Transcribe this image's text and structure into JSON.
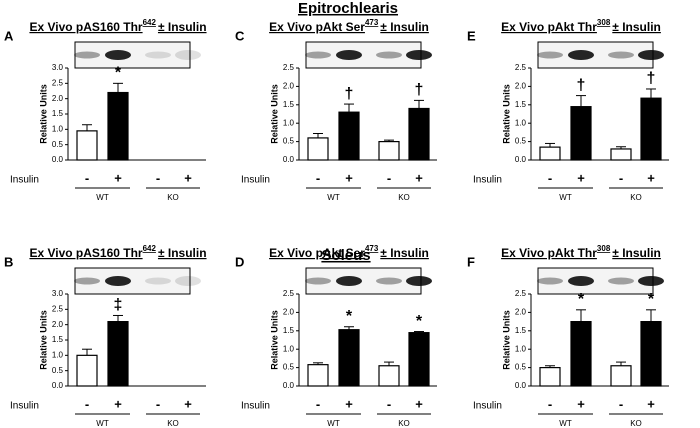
{
  "section_titles": [
    "Epitrochlearis",
    "Soleus"
  ],
  "chart_data": [
    {
      "type": "bar",
      "panel": "A",
      "title": "Ex Vivo pAS160 Thr",
      "title_superscript": "642",
      "title_suffix": "± Insulin",
      "ylabel": "Relative Units",
      "row_label": "Insulin",
      "categories": [
        "-",
        "+",
        "-",
        "+"
      ],
      "groups": [
        "WT",
        "KO"
      ],
      "values": [
        0.95,
        2.2,
        null,
        null
      ],
      "errors": [
        0.2,
        0.3,
        null,
        null
      ],
      "annotations": [
        null,
        "*",
        null,
        null
      ],
      "colors": [
        "#ffffff",
        "#000000",
        "#ffffff",
        "#000000"
      ],
      "ylim": [
        0,
        3
      ],
      "yticks": [
        {
          "value": 0,
          "label": "0.0"
        },
        0.5,
        {
          "value": 1,
          "label": "1.0"
        },
        1.5,
        {
          "value": 2,
          "label": "2.0"
        },
        2.5,
        {
          "value": 3,
          "label": "3.0"
        }
      ]
    },
    {
      "type": "bar",
      "panel": "B",
      "title": "Ex Vivo pAS160 Thr",
      "title_superscript": "642",
      "title_suffix": "± Insulin",
      "ylabel": "Relative Units",
      "row_label": "Insulin",
      "categories": [
        "-",
        "+",
        "-",
        "+"
      ],
      "groups": [
        "WT",
        "KO"
      ],
      "values": [
        1.0,
        2.1,
        null,
        null
      ],
      "errors": [
        0.2,
        0.2,
        null,
        null
      ],
      "annotations": [
        null,
        "‡",
        null,
        null
      ],
      "colors": [
        "#ffffff",
        "#000000",
        "#ffffff",
        "#000000"
      ],
      "ylim": [
        0,
        3
      ],
      "yticks": [
        {
          "value": 0,
          "label": "0.0"
        },
        0.5,
        {
          "value": 1,
          "label": "1.0"
        },
        1.5,
        {
          "value": 2,
          "label": "2.0"
        },
        2.5,
        {
          "value": 3,
          "label": "3.0"
        }
      ]
    },
    {
      "type": "bar",
      "panel": "C",
      "title": "Ex Vivo pAkt Ser",
      "title_superscript": "473",
      "title_suffix": "± Insulin",
      "ylabel": "Relative Units",
      "row_label": "Insulin",
      "categories": [
        "-",
        "+",
        "-",
        "+"
      ],
      "groups": [
        "WT",
        "KO"
      ],
      "values": [
        0.6,
        1.3,
        0.5,
        1.4
      ],
      "errors": [
        0.12,
        0.22,
        0.04,
        0.22
      ],
      "annotations": [
        null,
        "†",
        null,
        "†"
      ],
      "colors": [
        "#ffffff",
        "#000000",
        "#ffffff",
        "#000000"
      ],
      "ylim": [
        0,
        2.5
      ],
      "yticks": [
        {
          "value": 0,
          "label": "0.0"
        },
        0.5,
        {
          "value": 1,
          "label": "1.0"
        },
        1.5,
        {
          "value": 2,
          "label": "2.0"
        },
        2.5
      ]
    },
    {
      "type": "bar",
      "panel": "D",
      "title": "Ex Vivo pAkt Ser",
      "title_superscript": "473",
      "title_suffix": "± Insulin",
      "ylabel": "Relative Units",
      "row_label": "Insulin",
      "categories": [
        "-",
        "+",
        "-",
        "+"
      ],
      "groups": [
        "WT",
        "KO"
      ],
      "values": [
        0.58,
        1.53,
        0.55,
        1.45
      ],
      "errors": [
        0.05,
        0.08,
        0.1,
        0.03
      ],
      "annotations": [
        null,
        "*",
        null,
        "*"
      ],
      "colors": [
        "#ffffff",
        "#000000",
        "#ffffff",
        "#000000"
      ],
      "ylim": [
        0,
        2.5
      ],
      "yticks": [
        {
          "value": 0,
          "label": "0.0"
        },
        0.5,
        {
          "value": 1,
          "label": "1.0"
        },
        1.5,
        {
          "value": 2,
          "label": "2.0"
        },
        2.5
      ]
    },
    {
      "type": "bar",
      "panel": "E",
      "title": "Ex Vivo pAkt Thr",
      "title_superscript": "308",
      "title_suffix": "± Insulin",
      "ylabel": "Relative Units",
      "row_label": "Insulin",
      "categories": [
        "-",
        "+",
        "-",
        "+"
      ],
      "groups": [
        "WT",
        "KO"
      ],
      "values": [
        0.35,
        1.45,
        0.3,
        1.68
      ],
      "errors": [
        0.1,
        0.3,
        0.06,
        0.25
      ],
      "annotations": [
        null,
        "†",
        null,
        "†"
      ],
      "colors": [
        "#ffffff",
        "#000000",
        "#ffffff",
        "#000000"
      ],
      "ylim": [
        0,
        2.5
      ],
      "yticks": [
        {
          "value": 0,
          "label": "0.0"
        },
        0.5,
        {
          "value": 1,
          "label": "1.0"
        },
        1.5,
        {
          "value": 2,
          "label": "2.0"
        },
        2.5
      ]
    },
    {
      "type": "bar",
      "panel": "F",
      "title": "Ex Vivo pAkt Thr",
      "title_superscript": "308",
      "title_suffix": "± Insulin",
      "ylabel": "Relative Units",
      "row_label": "Insulin",
      "categories": [
        "-",
        "+",
        "-",
        "+"
      ],
      "groups": [
        "WT",
        "KO"
      ],
      "values": [
        0.5,
        1.75,
        0.55,
        1.75
      ],
      "errors": [
        0.05,
        0.32,
        0.1,
        0.32
      ],
      "annotations": [
        null,
        "*",
        null,
        "*"
      ],
      "colors": [
        "#ffffff",
        "#000000",
        "#ffffff",
        "#000000"
      ],
      "ylim": [
        0,
        2.5
      ],
      "yticks": [
        {
          "value": 0,
          "label": "0.0"
        },
        0.5,
        {
          "value": 1,
          "label": "1.0"
        },
        1.5,
        {
          "value": 2,
          "label": "2.0"
        },
        2.5
      ]
    }
  ]
}
